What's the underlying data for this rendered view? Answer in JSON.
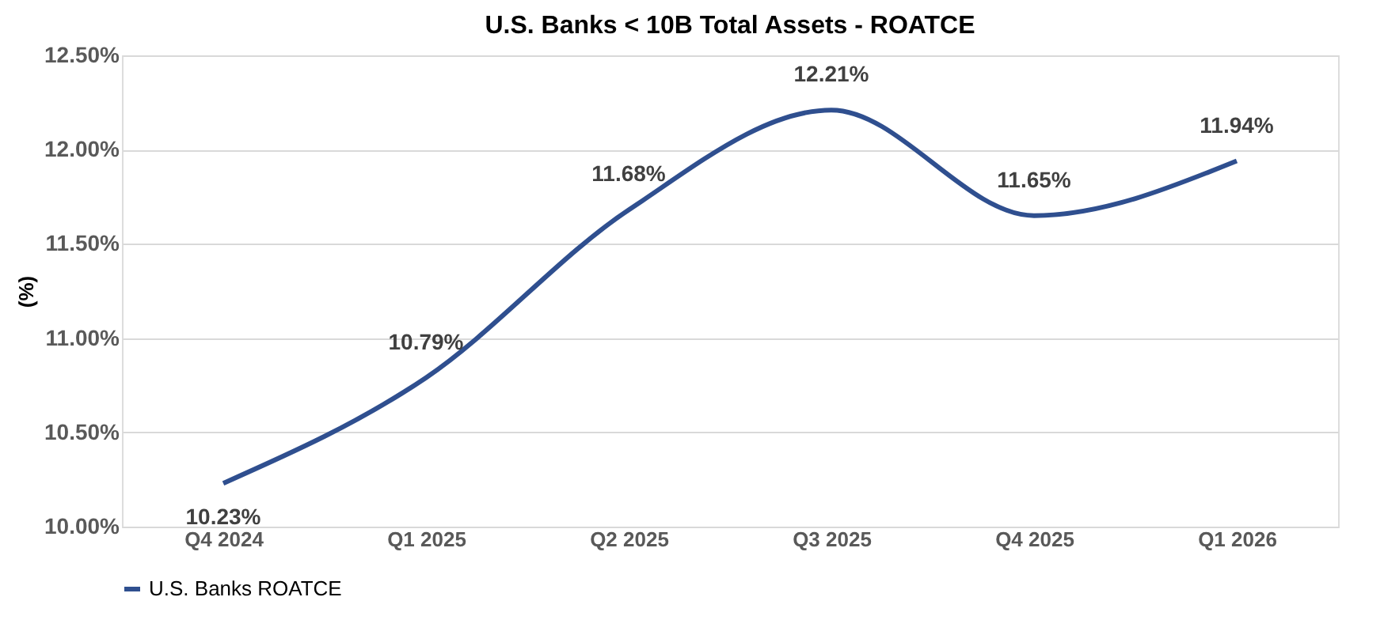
{
  "chart_data": {
    "type": "line",
    "title": "U.S. Banks < 10B Total Assets - ROATCE",
    "ylabel": "(%)",
    "categories": [
      "Q4 2024",
      "Q1 2025",
      "Q2 2025",
      "Q3 2025",
      "Q4 2025",
      "Q1 2026"
    ],
    "series": [
      {
        "name": "U.S. Banks ROATCE",
        "color": "#2f4f8f",
        "values": [
          10.23,
          10.79,
          11.68,
          12.21,
          11.65,
          11.94
        ],
        "value_labels": [
          "10.23%",
          "10.79%",
          "11.68%",
          "12.21%",
          "11.65%",
          "11.94%"
        ]
      }
    ],
    "ylim": [
      10.0,
      12.5
    ],
    "yticks": [
      {
        "value": 10.0,
        "label": "10.00%"
      },
      {
        "value": 10.5,
        "label": "10.50%"
      },
      {
        "value": 11.0,
        "label": "11.00%"
      },
      {
        "value": 11.5,
        "label": "11.50%"
      },
      {
        "value": 12.0,
        "label": "12.00%"
      },
      {
        "value": 12.5,
        "label": "12.50%"
      }
    ],
    "grid": "y",
    "legend": "bottom",
    "marker": "none",
    "line_style": "solid"
  }
}
